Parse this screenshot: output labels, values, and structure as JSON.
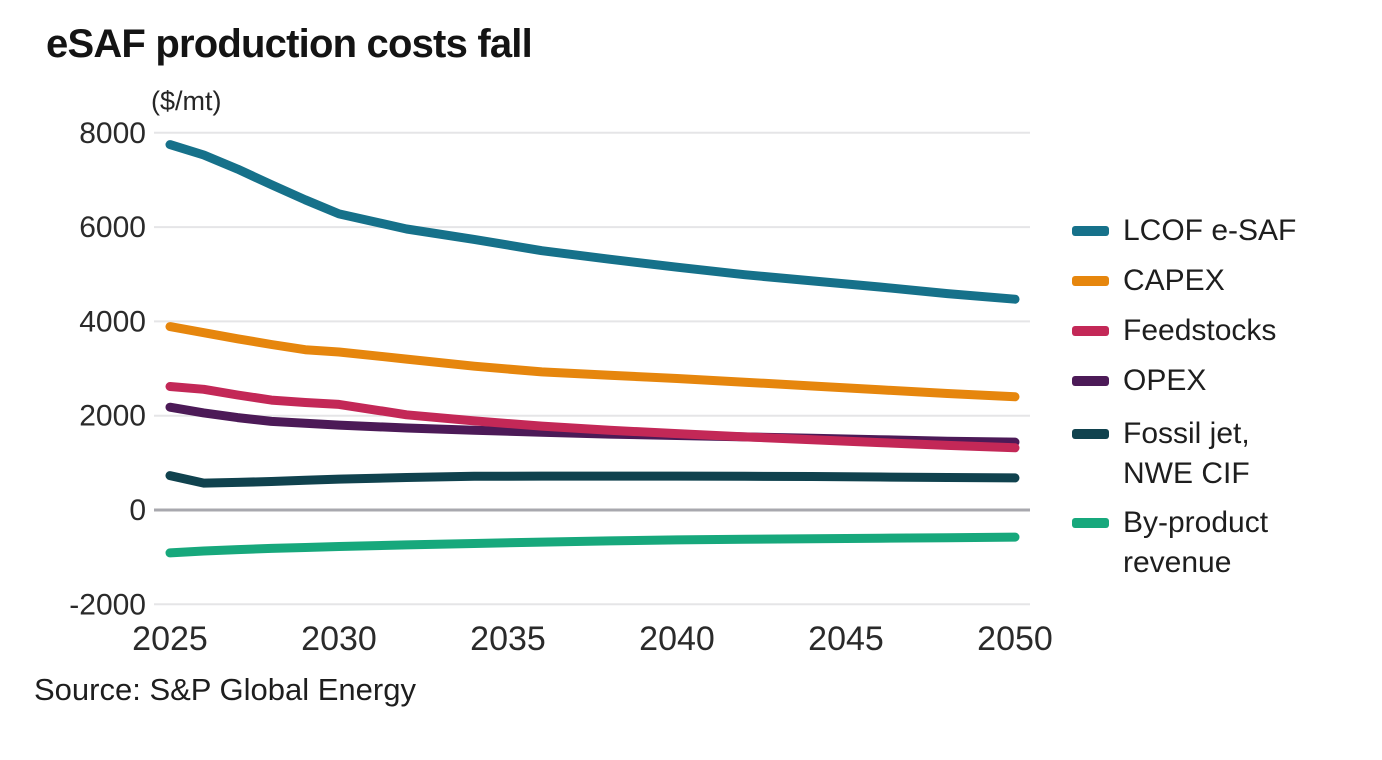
{
  "title": "eSAF production costs fall",
  "axis_unit": "($/mt)",
  "source": "Source: S&P Global Energy",
  "chart_data": {
    "type": "line",
    "title": "eSAF production costs fall",
    "ylabel": "($/mt)",
    "xlabel": "",
    "ylim": [
      -2000,
      8000
    ],
    "xlim": [
      2025,
      2050
    ],
    "y_ticks": [
      8000,
      6000,
      4000,
      2000,
      0,
      -2000
    ],
    "x_ticks": [
      2025,
      2030,
      2035,
      2040,
      2045,
      2050
    ],
    "grid": "horizontal",
    "legend_position": "right",
    "x": [
      2025,
      2026,
      2027,
      2028,
      2029,
      2030,
      2032,
      2034,
      2036,
      2038,
      2040,
      2042,
      2044,
      2046,
      2048,
      2050
    ],
    "series": [
      {
        "name": "LCOF e-SAF",
        "label_lines": [
          "LCOF e-SAF"
        ],
        "color": "#16718A",
        "values": [
          7750,
          7530,
          7230,
          6900,
          6580,
          6280,
          5960,
          5740,
          5500,
          5320,
          5150,
          4990,
          4860,
          4730,
          4590,
          4470
        ]
      },
      {
        "name": "CAPEX",
        "label_lines": [
          "CAPEX"
        ],
        "color": "#E6860D",
        "values": [
          3890,
          3760,
          3630,
          3510,
          3400,
          3350,
          3200,
          3050,
          2930,
          2860,
          2790,
          2710,
          2630,
          2550,
          2470,
          2400
        ]
      },
      {
        "name": "Feedstocks",
        "label_lines": [
          "Feedstocks"
        ],
        "color": "#C32857",
        "values": [
          2620,
          2560,
          2440,
          2330,
          2280,
          2240,
          2020,
          1890,
          1780,
          1690,
          1620,
          1550,
          1490,
          1430,
          1370,
          1320
        ]
      },
      {
        "name": "OPEX",
        "label_lines": [
          "OPEX"
        ],
        "color": "#4C1A57",
        "values": [
          2180,
          2060,
          1960,
          1880,
          1840,
          1800,
          1740,
          1690,
          1650,
          1610,
          1580,
          1550,
          1520,
          1490,
          1460,
          1440
        ]
      },
      {
        "name": "Fossil jet, NWE CIF",
        "label_lines": [
          "Fossil jet,",
          "NWE CIF"
        ],
        "color": "#10424E",
        "values": [
          730,
          570,
          585,
          605,
          630,
          655,
          690,
          715,
          720,
          720,
          720,
          715,
          710,
          700,
          690,
          680
        ]
      },
      {
        "name": "By-product revenue",
        "label_lines": [
          "By-product",
          "revenue"
        ],
        "color": "#17A87C",
        "values": [
          -910,
          -870,
          -840,
          -815,
          -795,
          -775,
          -740,
          -710,
          -680,
          -655,
          -635,
          -620,
          -608,
          -598,
          -588,
          -575
        ]
      }
    ]
  },
  "style": {
    "grid_color": "#E5E5E7",
    "zero_line_color": "#A8A8AE",
    "tick_label_color": "#2A2A2A"
  }
}
